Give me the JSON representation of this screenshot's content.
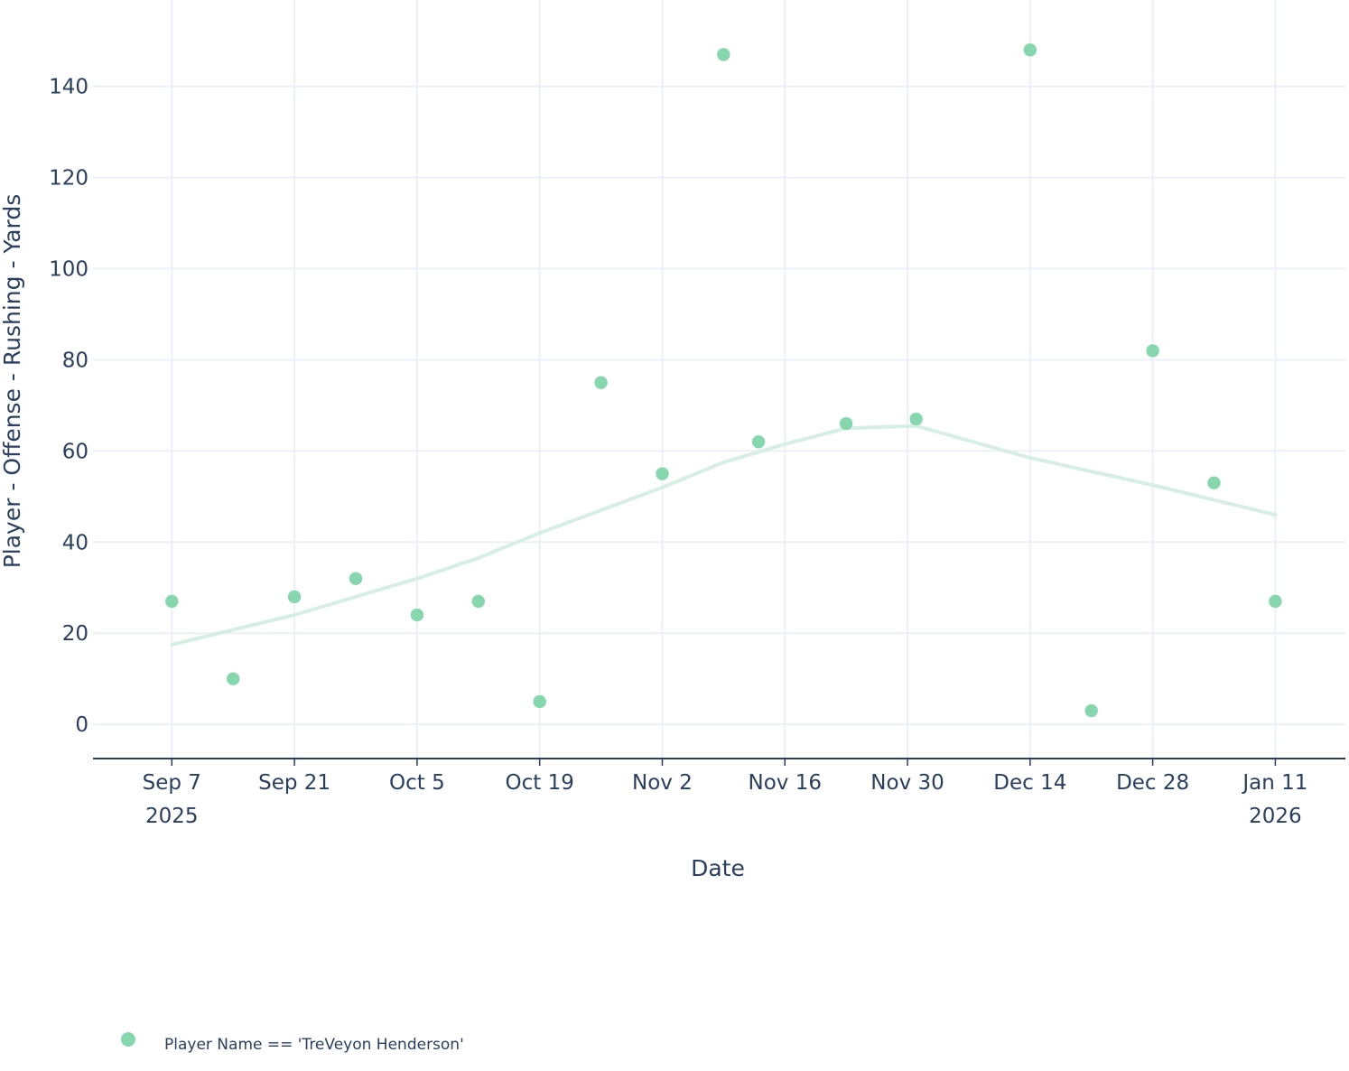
{
  "chart_data": {
    "type": "scatter",
    "xlabel": "Date",
    "ylabel": "Player - Offense - Rushing - Yards",
    "x_ticks": [
      {
        "date": "2025-09-07",
        "label": "Sep 7",
        "year": "2025"
      },
      {
        "date": "2025-09-21",
        "label": "Sep 21",
        "year": ""
      },
      {
        "date": "2025-10-05",
        "label": "Oct 5",
        "year": ""
      },
      {
        "date": "2025-10-19",
        "label": "Oct 19",
        "year": ""
      },
      {
        "date": "2025-11-02",
        "label": "Nov 2",
        "year": ""
      },
      {
        "date": "2025-11-16",
        "label": "Nov 16",
        "year": ""
      },
      {
        "date": "2025-11-30",
        "label": "Nov 30",
        "year": ""
      },
      {
        "date": "2025-12-14",
        "label": "Dec 14",
        "year": ""
      },
      {
        "date": "2025-12-28",
        "label": "Dec 28",
        "year": ""
      },
      {
        "date": "2026-01-11",
        "label": "Jan 11",
        "year": "2026"
      }
    ],
    "y_ticks": [
      0,
      20,
      40,
      60,
      80,
      100,
      120,
      140
    ],
    "xlim": [
      "2025-08-29",
      "2026-01-19"
    ],
    "ylim": [
      -7.5,
      155
    ],
    "grid": true,
    "legend_position": "bottom-left",
    "series": [
      {
        "name": "Player Name == 'TreVeyon Henderson'",
        "mode": "markers",
        "color": "#86d6ae",
        "points": [
          {
            "x": "2025-09-07",
            "y": 27
          },
          {
            "x": "2025-09-14",
            "y": 10
          },
          {
            "x": "2025-09-21",
            "y": 28
          },
          {
            "x": "2025-09-28",
            "y": 32
          },
          {
            "x": "2025-10-05",
            "y": 24
          },
          {
            "x": "2025-10-12",
            "y": 27
          },
          {
            "x": "2025-10-19",
            "y": 5
          },
          {
            "x": "2025-10-26",
            "y": 75
          },
          {
            "x": "2025-11-02",
            "y": 55
          },
          {
            "x": "2025-11-09",
            "y": 147
          },
          {
            "x": "2025-11-13",
            "y": 62
          },
          {
            "x": "2025-11-23",
            "y": 66
          },
          {
            "x": "2025-12-01",
            "y": 67
          },
          {
            "x": "2025-12-14",
            "y": 148
          },
          {
            "x": "2025-12-21",
            "y": 3
          },
          {
            "x": "2025-12-28",
            "y": 82
          },
          {
            "x": "2026-01-04",
            "y": 53
          },
          {
            "x": "2026-01-11",
            "y": 27
          }
        ]
      },
      {
        "name": "",
        "mode": "lines",
        "color": "#d6efe3",
        "points": [
          {
            "x": "2025-09-07",
            "y": 17.5
          },
          {
            "x": "2025-09-21",
            "y": 24
          },
          {
            "x": "2025-10-05",
            "y": 32
          },
          {
            "x": "2025-10-12",
            "y": 36.5
          },
          {
            "x": "2025-10-19",
            "y": 42
          },
          {
            "x": "2025-11-02",
            "y": 52
          },
          {
            "x": "2025-11-09",
            "y": 57.5
          },
          {
            "x": "2025-11-16",
            "y": 61.5
          },
          {
            "x": "2025-11-23",
            "y": 65
          },
          {
            "x": "2025-12-01",
            "y": 65.5
          },
          {
            "x": "2025-12-14",
            "y": 58.5
          },
          {
            "x": "2025-12-28",
            "y": 52.5
          },
          {
            "x": "2026-01-11",
            "y": 46
          }
        ]
      }
    ]
  }
}
